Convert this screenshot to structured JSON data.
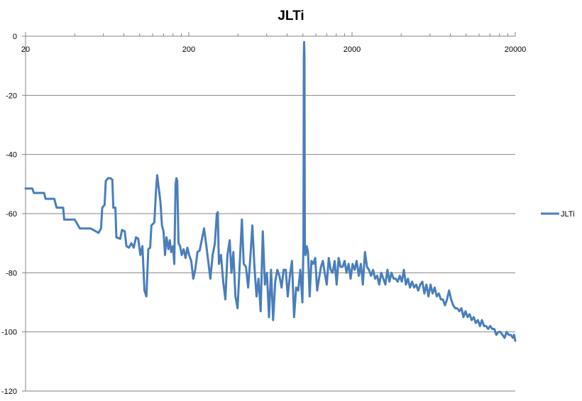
{
  "chart_data": {
    "type": "line",
    "title": "JLTi",
    "x_scale": "log",
    "xlim": [
      20,
      20000
    ],
    "ylim": [
      -120,
      0
    ],
    "x_ticks": [
      "20",
      "200",
      "2000",
      "20000"
    ],
    "y_ticks": [
      "0",
      "-20",
      "-40",
      "-60",
      "-80",
      "-100",
      "-120"
    ],
    "grid": "horizontal major",
    "x_axis_position": "top",
    "legend_position": "right",
    "colors": {
      "series": "#4A7EBB",
      "grid": "#868686",
      "axis": "#868686"
    },
    "series": [
      {
        "name": "JLTi",
        "points": [
          [
            20,
            -51.5
          ],
          [
            22,
            -51.5
          ],
          [
            22.5,
            -53
          ],
          [
            26,
            -53
          ],
          [
            26.5,
            -55
          ],
          [
            30,
            -55
          ],
          [
            31,
            -58
          ],
          [
            34,
            -58
          ],
          [
            34.5,
            -62
          ],
          [
            40,
            -62
          ],
          [
            41,
            -63
          ],
          [
            43,
            -65
          ],
          [
            50,
            -65
          ],
          [
            52,
            -65.5
          ],
          [
            56,
            -66.5
          ],
          [
            58,
            -65
          ],
          [
            59,
            -58
          ],
          [
            61,
            -57
          ],
          [
            62,
            -49
          ],
          [
            64,
            -48
          ],
          [
            66,
            -48
          ],
          [
            68,
            -48.5
          ],
          [
            69,
            -58
          ],
          [
            71,
            -58
          ],
          [
            72,
            -68
          ],
          [
            76,
            -68.5
          ],
          [
            78,
            -65.5
          ],
          [
            81,
            -66
          ],
          [
            83,
            -71
          ],
          [
            86,
            -71.5
          ],
          [
            89,
            -70
          ],
          [
            92,
            -71.5
          ],
          [
            95,
            -68
          ],
          [
            98,
            -68.5
          ],
          [
            101,
            -74
          ],
          [
            104,
            -71
          ],
          [
            107,
            -86
          ],
          [
            110,
            -88
          ],
          [
            113,
            -72
          ],
          [
            116,
            -71.5
          ],
          [
            118,
            -64
          ],
          [
            123,
            -63
          ],
          [
            126,
            -52
          ],
          [
            128,
            -47
          ],
          [
            130,
            -50
          ],
          [
            134,
            -56
          ],
          [
            137,
            -64
          ],
          [
            140,
            -66
          ],
          [
            143,
            -74
          ],
          [
            146,
            -68
          ],
          [
            150,
            -72
          ],
          [
            153,
            -69
          ],
          [
            156,
            -73
          ],
          [
            160,
            -71
          ],
          [
            163,
            -77
          ],
          [
            166,
            -50
          ],
          [
            168,
            -48
          ],
          [
            170,
            -49
          ],
          [
            173,
            -70
          ],
          [
            177,
            -71
          ],
          [
            181,
            -74
          ],
          [
            186,
            -72
          ],
          [
            191,
            -75
          ],
          [
            196,
            -71.5
          ],
          [
            201,
            -74
          ],
          [
            207,
            -76
          ],
          [
            213,
            -82
          ],
          [
            219,
            -79
          ],
          [
            226,
            -73
          ],
          [
            233,
            -72.5
          ],
          [
            240,
            -69
          ],
          [
            248,
            -65
          ],
          [
            255,
            -70
          ],
          [
            263,
            -76
          ],
          [
            271,
            -82
          ],
          [
            280,
            -74
          ],
          [
            289,
            -70
          ],
          [
            297,
            -60
          ],
          [
            301,
            -59.5
          ],
          [
            306,
            -77
          ],
          [
            315,
            -74
          ],
          [
            325,
            -83
          ],
          [
            335,
            -89
          ],
          [
            345,
            -74
          ],
          [
            356,
            -69
          ],
          [
            365,
            -80
          ],
          [
            375,
            -73
          ],
          [
            386,
            -88
          ],
          [
            398,
            -92
          ],
          [
            411,
            -76
          ],
          [
            423,
            -62
          ],
          [
            434,
            -77
          ],
          [
            448,
            -78
          ],
          [
            462,
            -85
          ],
          [
            475,
            -76
          ],
          [
            490,
            -64
          ],
          [
            505,
            -78
          ],
          [
            520,
            -88
          ],
          [
            535,
            -82
          ],
          [
            551,
            -93
          ],
          [
            568,
            -66
          ],
          [
            585,
            -84
          ],
          [
            602,
            -80
          ],
          [
            620,
            -95
          ],
          [
            638,
            -79
          ],
          [
            657,
            -96
          ],
          [
            677,
            -83
          ],
          [
            697,
            -79
          ],
          [
            718,
            -81
          ],
          [
            740,
            -85
          ],
          [
            762,
            -79
          ],
          [
            785,
            -79
          ],
          [
            808,
            -88
          ],
          [
            832,
            -81
          ],
          [
            857,
            -76
          ],
          [
            883,
            -95
          ],
          [
            909,
            -85
          ],
          [
            936,
            -86
          ],
          [
            964,
            -79
          ],
          [
            993,
            -90
          ],
          [
            1008,
            -70
          ],
          [
            1013,
            -8
          ],
          [
            1017,
            -2
          ],
          [
            1022,
            -6
          ],
          [
            1028,
            -71
          ],
          [
            1038,
            -74
          ],
          [
            1055,
            -71
          ],
          [
            1075,
            -73
          ],
          [
            1100,
            -88
          ],
          [
            1128,
            -76
          ],
          [
            1158,
            -77
          ],
          [
            1190,
            -75
          ],
          [
            1222,
            -86
          ],
          [
            1255,
            -82
          ],
          [
            1290,
            -78
          ],
          [
            1325,
            -76
          ],
          [
            1360,
            -80
          ],
          [
            1400,
            -84
          ],
          [
            1440,
            -75
          ],
          [
            1480,
            -79
          ],
          [
            1520,
            -80
          ],
          [
            1565,
            -76
          ],
          [
            1610,
            -84
          ],
          [
            1655,
            -75
          ],
          [
            1700,
            -78
          ],
          [
            1750,
            -78
          ],
          [
            1800,
            -76
          ],
          [
            1850,
            -80
          ],
          [
            1905,
            -77
          ],
          [
            1960,
            -82
          ],
          [
            2015,
            -77
          ],
          [
            2075,
            -79
          ],
          [
            2135,
            -76
          ],
          [
            2200,
            -81
          ],
          [
            2265,
            -77
          ],
          [
            2330,
            -84
          ],
          [
            2400,
            -73
          ],
          [
            2470,
            -78
          ],
          [
            2540,
            -79
          ],
          [
            2615,
            -81
          ],
          [
            2690,
            -79
          ],
          [
            2770,
            -82
          ],
          [
            2850,
            -81
          ],
          [
            2935,
            -84
          ],
          [
            3020,
            -80
          ],
          [
            3110,
            -82
          ],
          [
            3200,
            -84
          ],
          [
            3295,
            -79
          ],
          [
            3390,
            -83
          ],
          [
            3490,
            -80
          ],
          [
            3595,
            -82
          ],
          [
            3700,
            -82
          ],
          [
            3810,
            -83
          ],
          [
            3920,
            -81
          ],
          [
            4035,
            -83
          ],
          [
            4155,
            -79
          ],
          [
            4275,
            -84
          ],
          [
            4400,
            -82
          ],
          [
            4530,
            -85
          ],
          [
            4665,
            -83
          ],
          [
            4800,
            -85
          ],
          [
            4940,
            -84
          ],
          [
            5085,
            -86
          ],
          [
            5235,
            -84
          ],
          [
            5390,
            -83
          ],
          [
            5550,
            -87
          ],
          [
            5710,
            -84
          ],
          [
            5880,
            -88
          ],
          [
            6055,
            -84
          ],
          [
            6230,
            -87
          ],
          [
            6415,
            -85
          ],
          [
            6605,
            -88
          ],
          [
            6800,
            -87
          ],
          [
            7000,
            -89
          ],
          [
            7205,
            -89
          ],
          [
            7415,
            -91
          ],
          [
            7635,
            -89
          ],
          [
            7860,
            -86
          ],
          [
            8090,
            -89
          ],
          [
            8330,
            -91
          ],
          [
            8575,
            -92
          ],
          [
            8825,
            -92
          ],
          [
            9085,
            -93
          ],
          [
            9355,
            -92
          ],
          [
            9630,
            -95
          ],
          [
            9910,
            -93
          ],
          [
            10200,
            -95
          ],
          [
            10500,
            -94
          ],
          [
            10810,
            -96
          ],
          [
            11130,
            -95
          ],
          [
            11460,
            -97
          ],
          [
            11800,
            -96
          ],
          [
            12145,
            -98
          ],
          [
            12500,
            -96
          ],
          [
            12870,
            -98
          ],
          [
            13250,
            -98
          ],
          [
            13640,
            -99
          ],
          [
            14040,
            -98
          ],
          [
            14450,
            -99
          ],
          [
            14880,
            -99
          ],
          [
            15320,
            -101
          ],
          [
            15770,
            -100
          ],
          [
            16230,
            -100
          ],
          [
            16710,
            -101
          ],
          [
            17200,
            -102
          ],
          [
            17710,
            -100
          ],
          [
            18230,
            -101
          ],
          [
            18770,
            -101
          ],
          [
            19320,
            -102
          ],
          [
            19650,
            -101
          ],
          [
            20000,
            -103
          ]
        ]
      }
    ]
  }
}
